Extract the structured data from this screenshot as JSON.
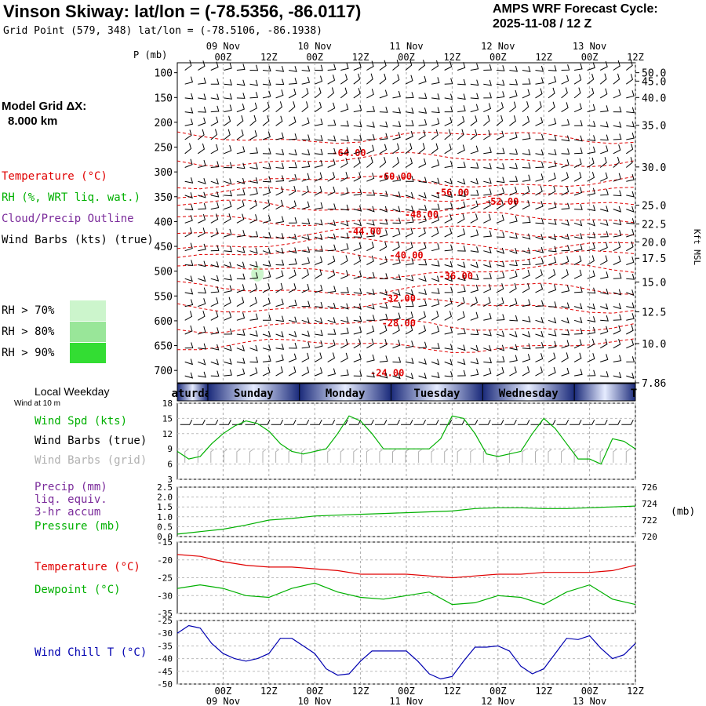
{
  "header": {
    "title": "Vinson Skiway:  lat/lon = (-78.5356, -86.0117)",
    "subtitle": "Grid Point (579, 348) lat/lon = (-78.5106, -86.1938)",
    "cycle_line1": "AMPS WRF Forecast Cycle:",
    "cycle_line2": "2025-11-08 / 12  Z"
  },
  "model_grid": {
    "line1": "Model Grid ΔX:",
    "line2": "8.000 km"
  },
  "legend_upper": {
    "temperature": {
      "label": "Temperature (°C)",
      "color": "#e00000"
    },
    "rh": {
      "label": "RH (%, WRT liq. wat.)",
      "color": "#00b000"
    },
    "cloud": {
      "label": "Cloud/Precip Outline",
      "color": "#7a2a9a"
    },
    "wind": {
      "label": "Wind Barbs (kts) (true)",
      "color": "#000000"
    }
  },
  "rh_legend": [
    {
      "label": "RH > 70%",
      "color": "#ccf5cc"
    },
    {
      "label": "RH > 80%",
      "color": "#99e699"
    },
    {
      "label": "RH > 90%",
      "color": "#33dd33"
    }
  ],
  "time_axis": {
    "top_dates": [
      "09 Nov",
      "10 Nov",
      "11 Nov",
      "12 Nov",
      "13 Nov"
    ],
    "ticks": [
      "00Z",
      "12Z",
      "00Z",
      "12Z",
      "00Z",
      "12Z",
      "00Z",
      "12Z",
      "00Z",
      "12Z"
    ],
    "bottom_dates": [
      "09 Nov",
      "10 Nov",
      "11 Nov",
      "12 Nov",
      "13 Nov"
    ]
  },
  "weekday_band": {
    "title": "Local Weekday",
    "subtitle": "Wind at 10 m",
    "days": [
      "aturday",
      "Sunday",
      "Monday",
      "Tuesday",
      "Wednesday",
      "T"
    ]
  },
  "chart_data": [
    {
      "type": "line",
      "name": "cross-section",
      "ylabel": "P (mb)",
      "y_ticks": [
        100,
        150,
        200,
        250,
        300,
        350,
        400,
        450,
        500,
        550,
        600,
        650,
        700
      ],
      "right_ticks": [
        "50.0",
        "45.0",
        "40.0",
        "35.0",
        "30.0",
        "25.0",
        "22.5",
        "20.0",
        "17.5",
        "15.0",
        "12.5",
        "10.0",
        "7.86"
      ],
      "right_tick_pressures": [
        100,
        117,
        150,
        206,
        290,
        367,
        405,
        441,
        474,
        522,
        582,
        646,
        725
      ],
      "right_label": "Kft MSL",
      "ylim": [
        725,
        80
      ],
      "xlim": [
        -12,
        108
      ],
      "isotherm_labels": [
        {
          "text": "-64.00",
          "x": 33,
          "p": 262
        },
        {
          "text": "-60.00",
          "x": 45,
          "p": 309
        },
        {
          "text": "-56.00",
          "x": 60,
          "p": 342
        },
        {
          "text": "-52.00",
          "x": 73,
          "p": 360
        },
        {
          "text": "-48.00",
          "x": 52,
          "p": 386
        },
        {
          "text": "-44.00",
          "x": 37,
          "p": 420
        },
        {
          "text": "-40.00",
          "x": 48,
          "p": 468
        },
        {
          "text": "-36.00",
          "x": 61,
          "p": 510
        },
        {
          "text": "-32.00",
          "x": 46,
          "p": 555
        },
        {
          "text": "-28.00",
          "x": 46,
          "p": 605
        },
        {
          "text": "-24.00",
          "x": 43,
          "p": 705
        }
      ]
    },
    {
      "type": "line",
      "name": "wind",
      "left_label": "Wind Spd (kts)",
      "left_label_color": "#00b000",
      "label2": "Wind Barbs (true)",
      "label3": "Wind Barbs (grid)",
      "label3_color": "#b0b0b0",
      "y_ticks": [
        3,
        6,
        9,
        12,
        15,
        18
      ],
      "ylim": [
        3,
        18
      ],
      "x": [
        -12,
        -9,
        -6,
        -3,
        0,
        3,
        6,
        9,
        12,
        15,
        18,
        21,
        24,
        27,
        30,
        33,
        36,
        39,
        42,
        45,
        48,
        51,
        54,
        57,
        60,
        63,
        66,
        69,
        72,
        75,
        78,
        81,
        84,
        87,
        90,
        93,
        96,
        99,
        102,
        105,
        108
      ],
      "values": [
        8.5,
        7,
        7.5,
        10,
        12,
        13.5,
        14.5,
        14,
        12.5,
        10,
        8.5,
        8,
        8.5,
        9,
        12,
        15.5,
        14.5,
        12,
        9,
        9,
        9,
        9,
        9,
        11,
        15.5,
        15,
        12,
        8,
        7.5,
        8,
        8.5,
        12,
        15,
        13,
        10,
        7,
        7,
        6,
        11,
        10.5,
        9
      ]
    },
    {
      "type": "line",
      "name": "precip-pressure",
      "label1": "Precip (mm)",
      "label1b": "liq. equiv.",
      "label1c": "3-hr accum",
      "label1_color": "#7a2a9a",
      "label2": "Pressure (mb)",
      "label2_color": "#00b000",
      "y_ticks": [
        "0.0",
        "0.5",
        "1.0",
        "1.5",
        "2.0",
        "2.5"
      ],
      "ylim": [
        0,
        2.5
      ],
      "right_ticks": [
        720,
        722,
        724,
        726
      ],
      "right_unit": "(mb)",
      "pressure_ylim": [
        720,
        726
      ],
      "x": [
        -12,
        -6,
        0,
        6,
        12,
        18,
        24,
        30,
        36,
        42,
        48,
        54,
        60,
        66,
        72,
        78,
        84,
        90,
        96,
        102,
        108
      ],
      "pressure": [
        720.3,
        720.6,
        720.9,
        721.4,
        722.0,
        722.2,
        722.5,
        722.6,
        722.7,
        722.8,
        722.9,
        723.0,
        723.1,
        723.4,
        723.5,
        723.5,
        723.4,
        723.4,
        723.5,
        723.6,
        723.7
      ]
    },
    {
      "type": "line",
      "name": "temp-dewpoint",
      "label1": "Temperature (°C)",
      "label1_color": "#e00000",
      "label2": "Dewpoint (°C)",
      "label2_color": "#00b000",
      "y_ticks": [
        -35,
        -30,
        -25,
        -20,
        -15
      ],
      "ylim": [
        -35,
        -15
      ],
      "x": [
        -12,
        -6,
        0,
        6,
        12,
        18,
        24,
        30,
        36,
        42,
        48,
        54,
        60,
        66,
        72,
        78,
        84,
        90,
        96,
        102,
        108
      ],
      "temperature": [
        -18.5,
        -19,
        -20.5,
        -21.5,
        -22,
        -22,
        -22.5,
        -23,
        -24,
        -24,
        -24,
        -24.5,
        -25,
        -24.5,
        -24,
        -24,
        -23.5,
        -23.5,
        -23.5,
        -23,
        -21.5
      ],
      "dewpoint": [
        -28,
        -27,
        -28,
        -30,
        -30.5,
        -28,
        -26.5,
        -29,
        -30.5,
        -31,
        -30,
        -29,
        -32.5,
        -32,
        -30,
        -30.5,
        -32.5,
        -29,
        -27,
        -31,
        -32.5
      ]
    },
    {
      "type": "line",
      "name": "wind-chill",
      "label1": "Wind Chill T (°C)",
      "label1_color": "#0000b0",
      "y_ticks": [
        -50,
        -45,
        -40,
        -35,
        -30,
        -25
      ],
      "ylim": [
        -50,
        -25
      ],
      "x": [
        -12,
        -9,
        -6,
        -3,
        0,
        3,
        6,
        9,
        12,
        15,
        18,
        21,
        24,
        27,
        30,
        33,
        36,
        39,
        42,
        45,
        48,
        51,
        54,
        57,
        60,
        63,
        66,
        69,
        72,
        75,
        78,
        81,
        84,
        87,
        90,
        93,
        96,
        99,
        102,
        105,
        108
      ],
      "values": [
        -30,
        -27,
        -28,
        -34,
        -38,
        -40,
        -41,
        -40,
        -38,
        -32,
        -32,
        -35,
        -38,
        -44,
        -46.5,
        -46,
        -41,
        -37,
        -37,
        -37,
        -37,
        -41,
        -46,
        -48,
        -47,
        -41,
        -35.5,
        -35.5,
        -35,
        -37,
        -43,
        -46,
        -44,
        -38,
        -32,
        -32.5,
        -31,
        -36,
        -40,
        -38.5,
        -34
      ]
    }
  ]
}
